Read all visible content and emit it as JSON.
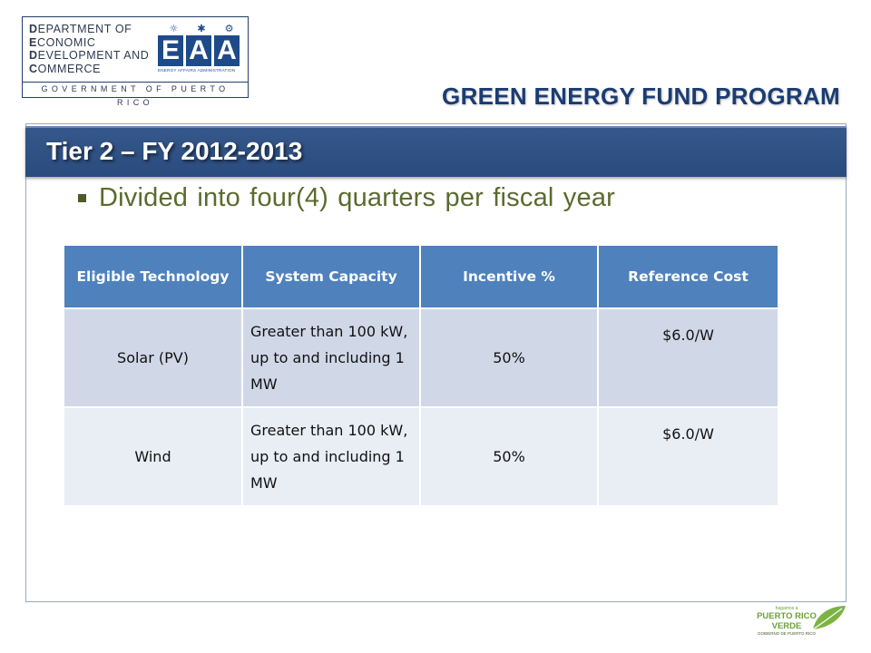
{
  "logo": {
    "dept_lines": [
      {
        "first": "D",
        "rest": "EPARTMENT OF"
      },
      {
        "first": "E",
        "rest": "CONOMIC"
      },
      {
        "first": "D",
        "rest": "EVELOPMENT AND"
      },
      {
        "first": "C",
        "rest": "OMMERCE"
      }
    ],
    "eaa_letters": [
      "E",
      "A",
      "A"
    ],
    "eaa_subtitle": "ENERGY AFFAIRS ADMINISTRATION",
    "government": "GOVERNMENT OF PUERTO RICO"
  },
  "program_title": "GREEN ENERGY FUND PROGRAM",
  "tier_title": "Tier 2 – FY 2012-2013",
  "bullet": "Divided into four(4) quarters per fiscal year",
  "table": {
    "headers": [
      "Eligible Technology",
      "System Capacity",
      "Incentive %",
      "Reference Cost"
    ],
    "rows": [
      {
        "technology": "Solar (PV)",
        "capacity": "Greater than 100 kW, up to and including  1 MW",
        "incentive": "50%",
        "cost": "$6.0/W"
      },
      {
        "technology": "Wind",
        "capacity": "Greater than 100 kW, up to and including  1 MW",
        "incentive": "50%",
        "cost": "$6.0/W"
      }
    ]
  },
  "footer_logo": {
    "small": "hagamos a",
    "line1": "PUERTO RICO",
    "line2": "VERDE",
    "gov": "GOBIERNO DE PUERTO RICO"
  },
  "colors": {
    "tier_bar": "#2f5282",
    "table_header": "#4f81bd",
    "row_a": "#d0d8e8",
    "row_b": "#e9edf4",
    "bullet_text": "#5a6b2e",
    "program_title": "#1a3c73"
  }
}
